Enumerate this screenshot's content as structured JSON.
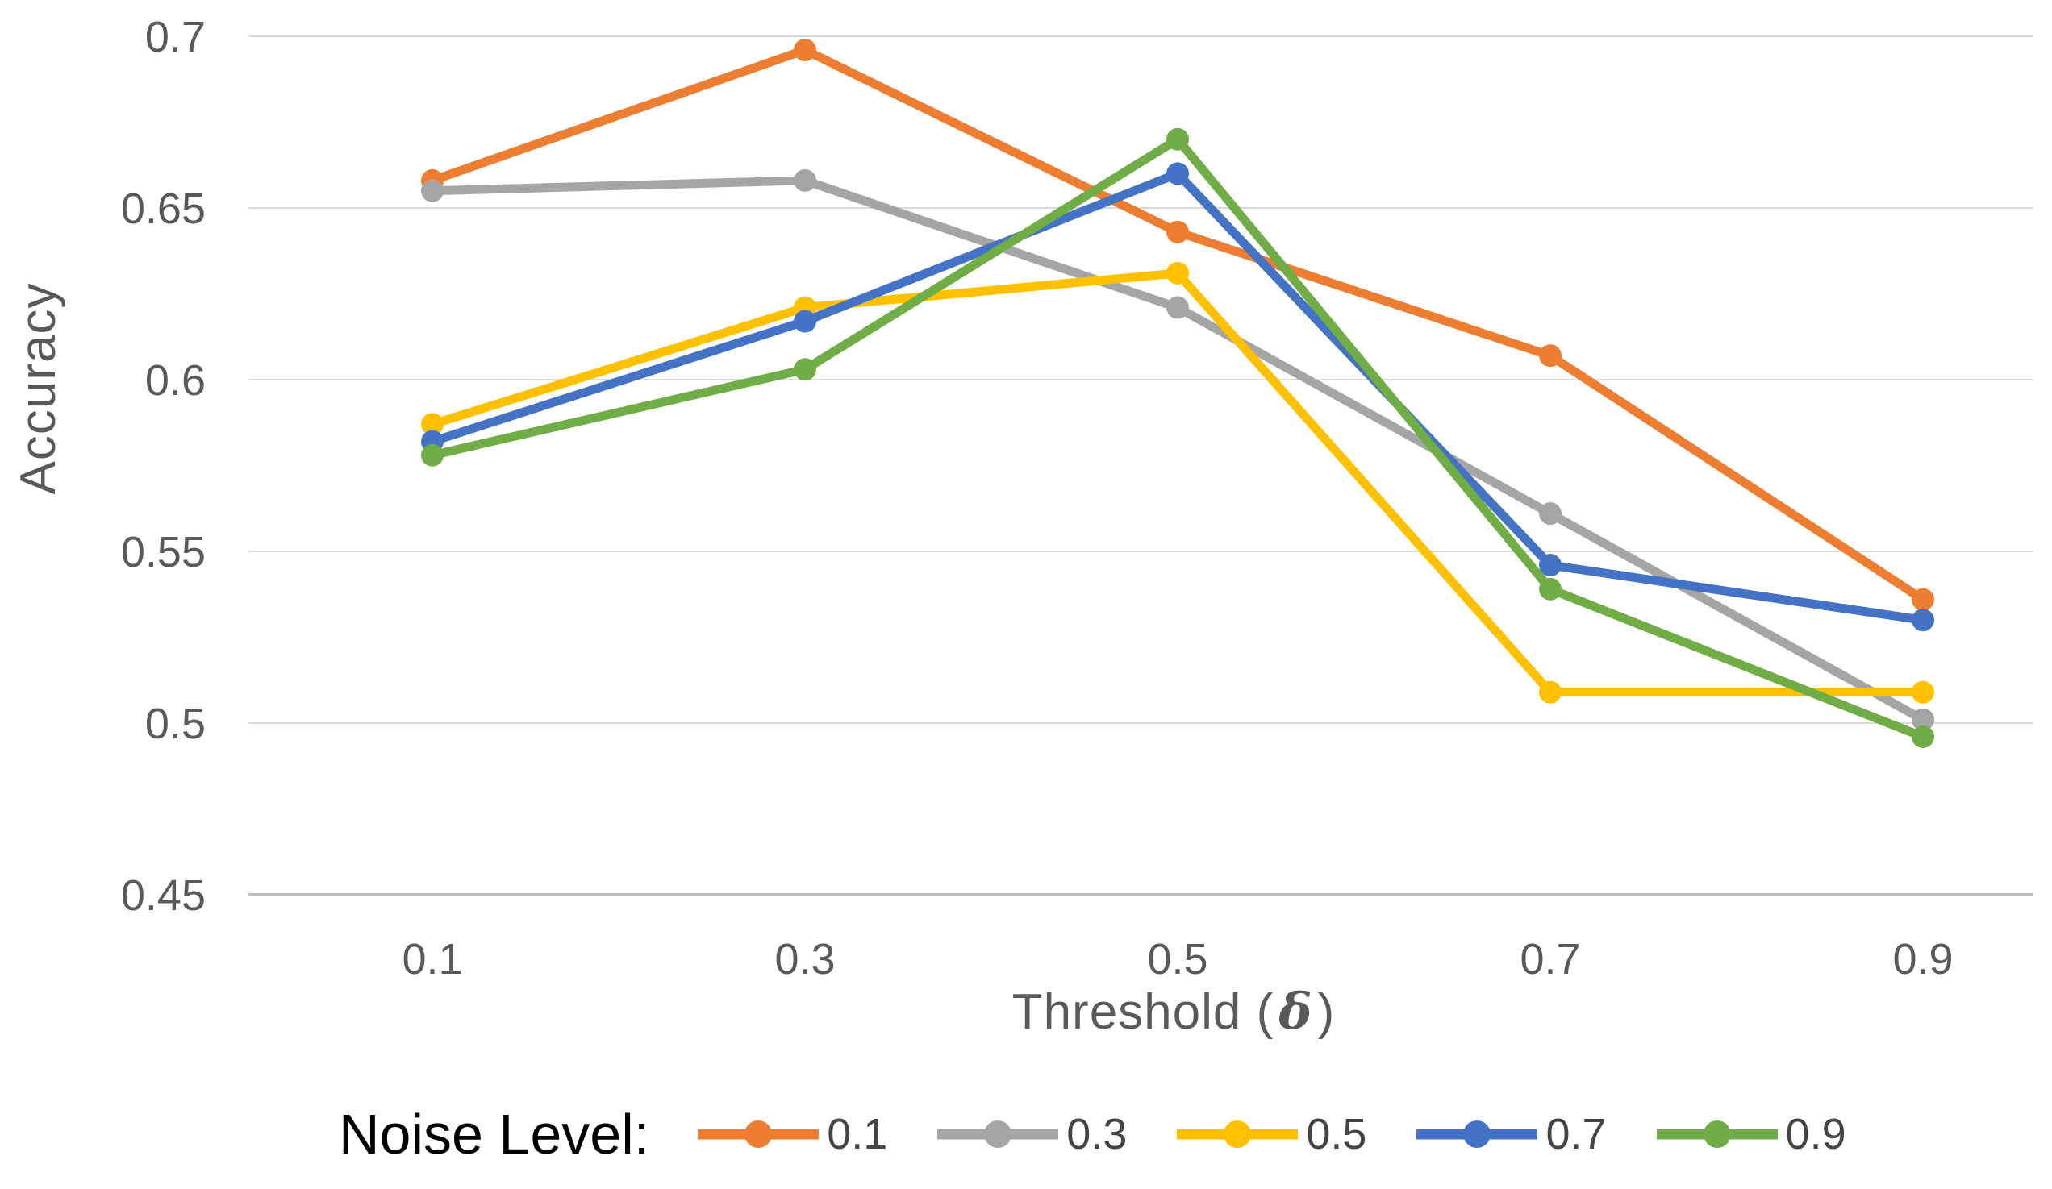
{
  "chart_data": {
    "type": "line",
    "title": "",
    "ylabel": "Accuracy",
    "xlabel_prefix": "Threshold (",
    "xlabel_symbol": "δ",
    "xlabel_suffix": ")",
    "x_axis_variable": "Threshold",
    "categories": [
      "0.1",
      "0.3",
      "0.5",
      "0.7",
      "0.9"
    ],
    "yticks": [
      "0.7",
      "0.65",
      "0.6",
      "0.55",
      "0.5",
      "0.45"
    ],
    "ylim": [
      0.45,
      0.7
    ],
    "grid": true,
    "legend_position": "bottom",
    "legend_title": "Noise Level:",
    "series": [
      {
        "name": "0.1",
        "color": "#ED7D31",
        "values": [
          0.658,
          0.696,
          0.643,
          0.607,
          0.536
        ]
      },
      {
        "name": "0.3",
        "color": "#A5A5A5",
        "values": [
          0.655,
          0.658,
          0.621,
          0.561,
          0.501
        ]
      },
      {
        "name": "0.5",
        "color": "#FFC000",
        "values": [
          0.587,
          0.621,
          0.631,
          0.509,
          0.509
        ]
      },
      {
        "name": "0.7",
        "color": "#4472C4",
        "values": [
          0.582,
          0.617,
          0.66,
          0.546,
          0.53
        ]
      },
      {
        "name": "0.9",
        "color": "#70AD47",
        "values": [
          0.578,
          0.603,
          0.67,
          0.539,
          0.496
        ]
      }
    ],
    "colors": {
      "gridline": "#D9D9D9",
      "axis_line": "#BFBFBF",
      "tick_text": "#595959",
      "legend_title_text": "#000000"
    }
  }
}
